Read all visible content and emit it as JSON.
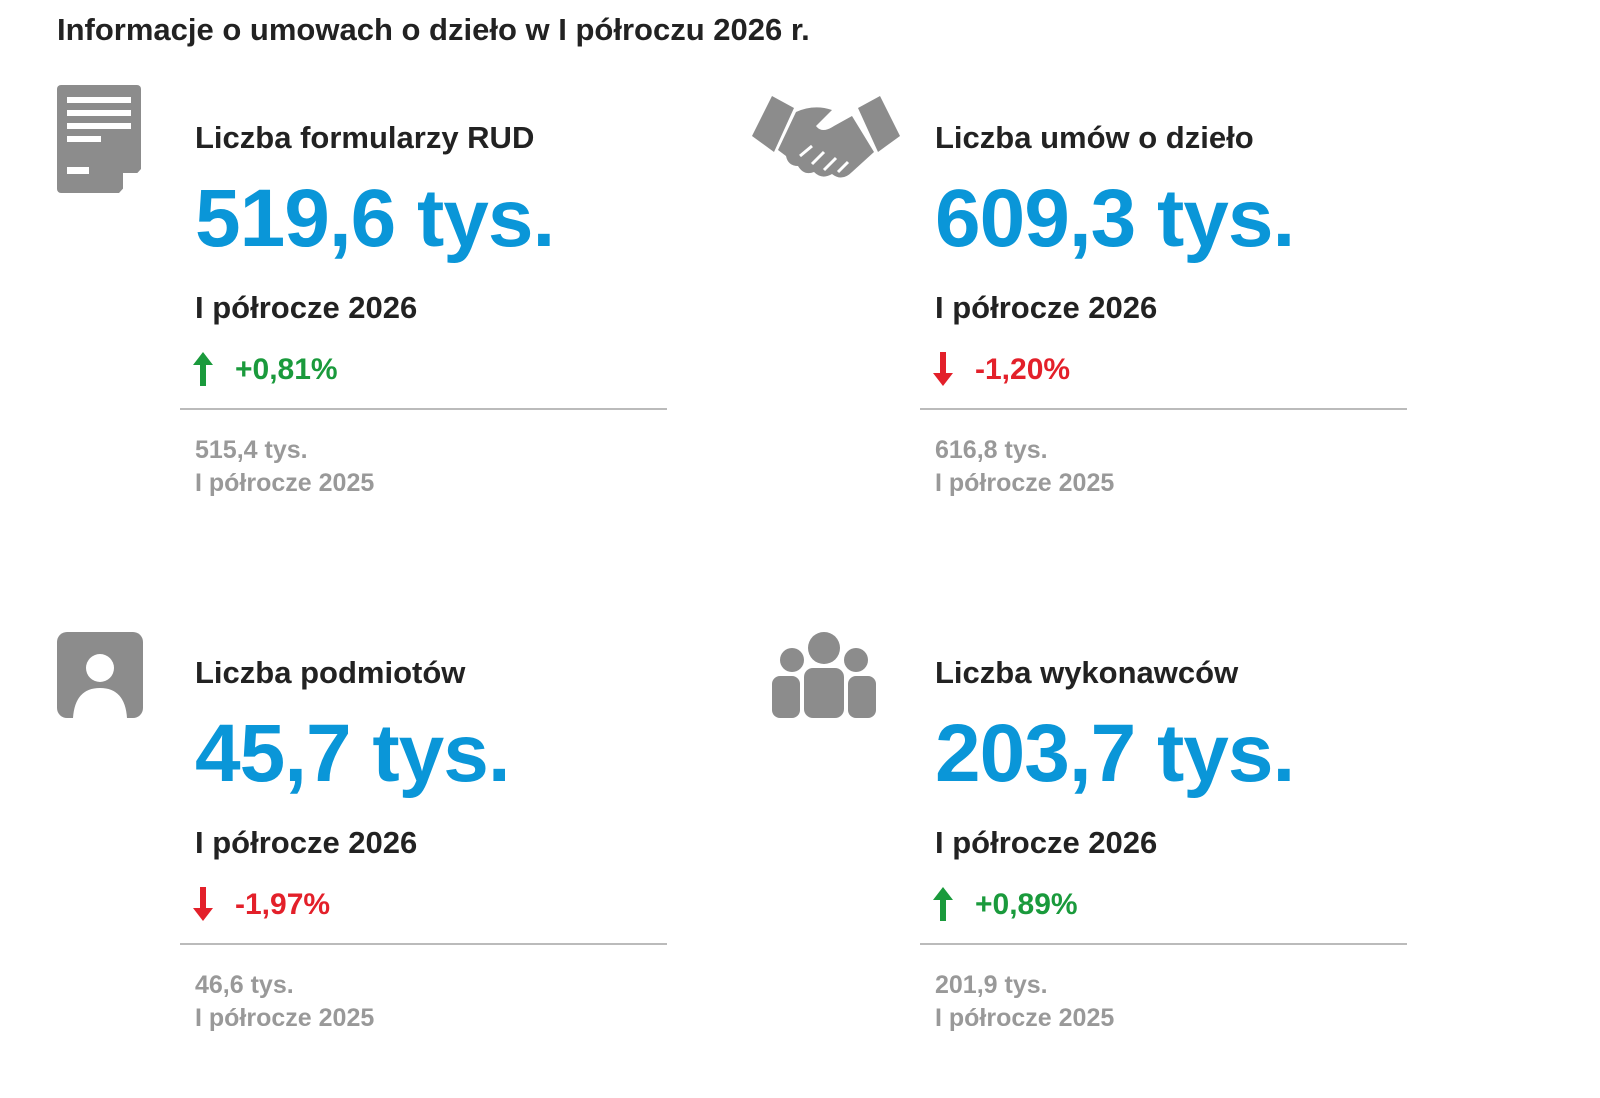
{
  "header": {
    "title": "Informacje o umowach o dzieło w I półroczu 2026 r."
  },
  "cards": [
    {
      "label": "Liczba formularzy RUD",
      "value": "519,6 tys.",
      "period": "I półrocze 2026",
      "change": "+0,81%",
      "trend": "up",
      "change_color": "#1a9a3c",
      "previous_value": "515,4 tys.",
      "previous_period": "I półrocze 2025"
    },
    {
      "label": "Liczba umów o dzieło",
      "value": "609,3 tys.",
      "period": "I półrocze 2026",
      "change": "-1,20%",
      "trend": "down",
      "change_color": "#e3202a",
      "previous_value": "616,8 tys.",
      "previous_period": "I półrocze 2025"
    },
    {
      "label": "Liczba podmiotów",
      "value": "45,7 tys.",
      "period": "I półrocze 2026",
      "change": "-1,97%",
      "trend": "down",
      "change_color": "#e3202a",
      "previous_value": "46,6 tys.",
      "previous_period": "I półrocze 2025"
    },
    {
      "label": "Liczba wykonawców",
      "value": "203,7 tys.",
      "period": "I półrocze 2026",
      "change": "+0,89%",
      "trend": "up",
      "change_color": "#1a9a3c",
      "previous_value": "201,9 tys.",
      "previous_period": "I półrocze 2025"
    }
  ],
  "value_color": "#0a96d8"
}
